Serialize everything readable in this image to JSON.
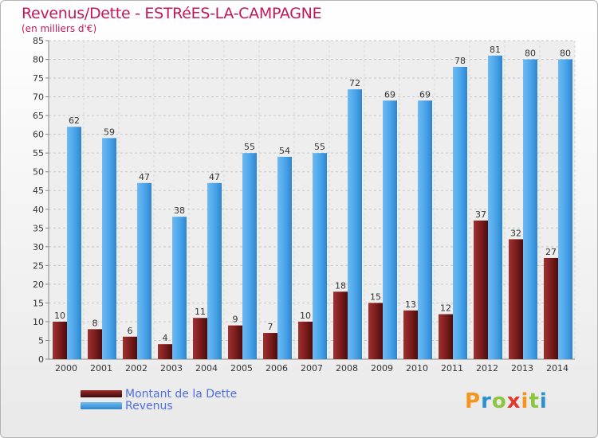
{
  "chart_data": {
    "type": "bar",
    "title": "Revenus/Dette - ESTRéES-LA-CAMPAGNE",
    "subtitle": "(en milliers d'€)",
    "categories": [
      "2000",
      "2001",
      "2002",
      "2003",
      "2004",
      "2005",
      "2006",
      "2007",
      "2008",
      "2009",
      "2010",
      "2011",
      "2012",
      "2013",
      "2014"
    ],
    "series": [
      {
        "name": "Montant de la Dette",
        "color": "#7b1c1c",
        "values": [
          10,
          8,
          6,
          4,
          11,
          9,
          7,
          10,
          18,
          15,
          13,
          12,
          37,
          32,
          27
        ]
      },
      {
        "name": "Revenus",
        "color": "#4aa3e8",
        "values": [
          62,
          59,
          47,
          38,
          47,
          55,
          54,
          55,
          72,
          69,
          69,
          78,
          81,
          80,
          80
        ]
      }
    ],
    "ylim": [
      0,
      85
    ],
    "yticks": [
      0,
      5,
      10,
      15,
      20,
      25,
      30,
      35,
      40,
      45,
      50,
      55,
      60,
      65,
      70,
      75,
      80,
      85
    ],
    "grid": true,
    "legend_position": "bottom-left"
  },
  "legend": {
    "items": [
      {
        "label": "Montant de la Dette",
        "color": "#7b1c1c"
      },
      {
        "label": "Revenus",
        "color": "#4aa3e8"
      }
    ]
  },
  "logo": {
    "letters": [
      "P",
      "r",
      "o",
      "x",
      "i",
      "t",
      "i"
    ],
    "colors": [
      "#f7941d",
      "#2b8fd6",
      "#8cc63f",
      "#e23a2f",
      "#f7941d",
      "#8cc63f",
      "#2b8fd6"
    ]
  }
}
